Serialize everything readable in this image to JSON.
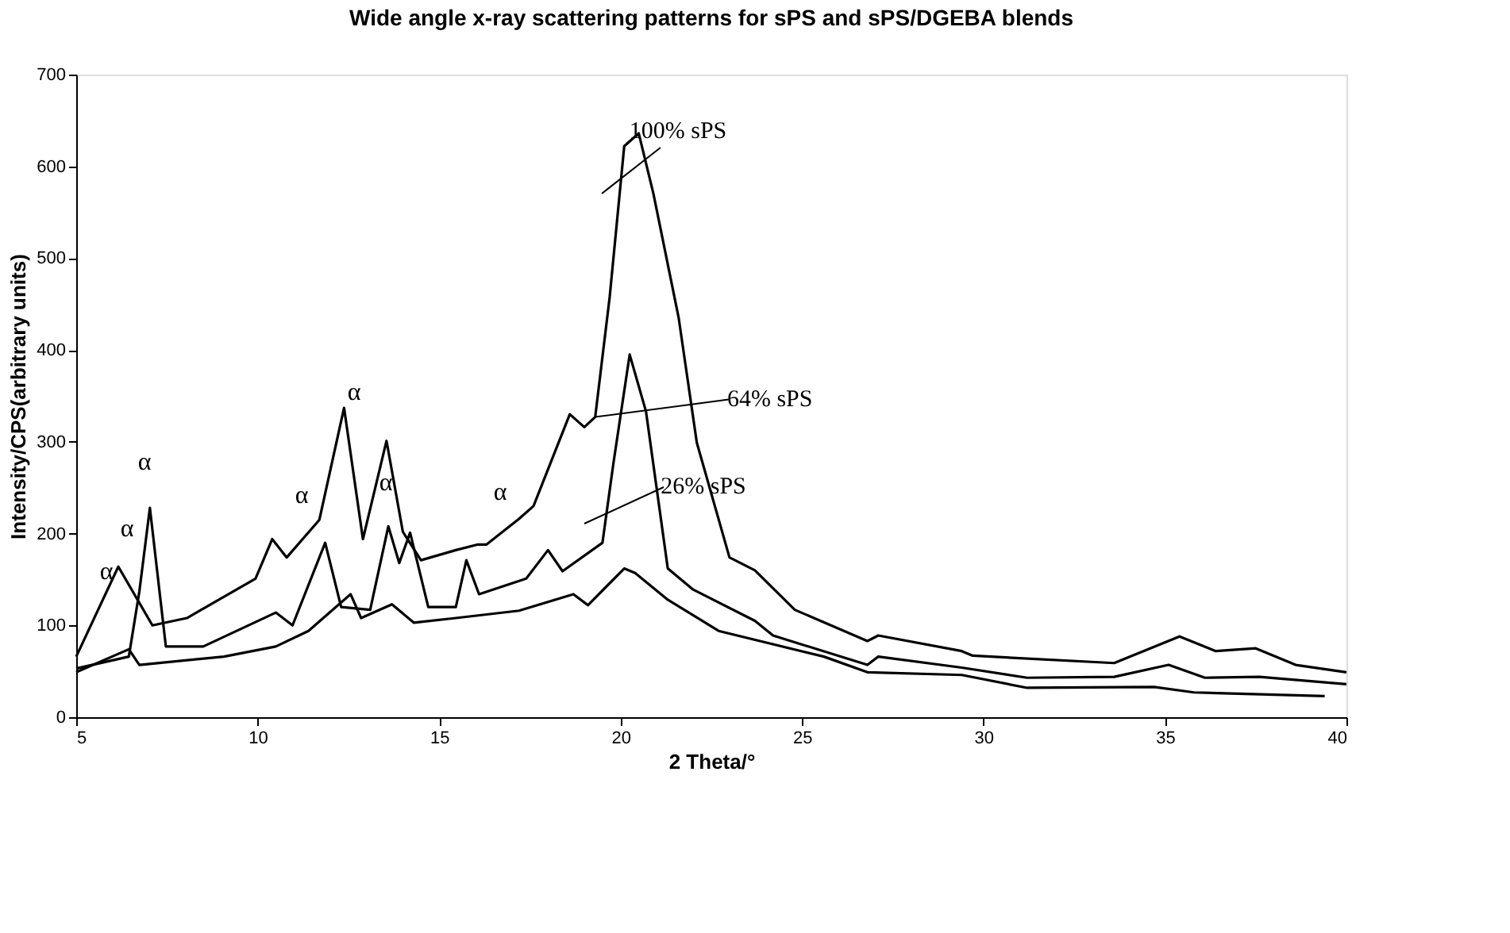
{
  "chart_data": {
    "type": "line",
    "title": "Wide angle x-ray scattering patterns for sPS and sPS/DGEBA blends",
    "xlabel": "2 Theta/°",
    "ylabel": "Intensity/CPS(arbitrary units)",
    "xlim": [
      5,
      40
    ],
    "xticks": [
      5,
      10,
      15,
      20,
      25,
      30,
      35,
      40
    ],
    "ylim": [
      0,
      700
    ],
    "yticks": [
      0,
      100,
      200,
      300,
      400,
      500,
      600,
      700
    ],
    "grid": false,
    "marker": "none",
    "line_style": "solid",
    "series": [
      {
        "color": "#000000",
        "x": [
          5,
          6.16,
          7.1,
          8.05,
          9.94,
          10.4,
          10.8,
          11.7,
          12.38,
          12.9,
          13.55,
          14.0,
          14.5,
          15.46,
          16.05,
          16.3,
          17.2,
          17.6,
          18.6,
          19.0,
          19.3,
          19.7,
          20.1,
          20.5,
          20.9,
          21.6,
          22.1,
          23.0,
          23.7,
          24.8,
          26.8,
          27.1,
          29.4,
          29.7,
          33.6,
          35.4,
          36.4,
          37.5,
          38.6,
          40
        ],
        "values": [
          66,
          164,
          100,
          108,
          151,
          194,
          174,
          215,
          337,
          194,
          301,
          202,
          171,
          182,
          188,
          188,
          216,
          230,
          330,
          316,
          327,
          458,
          622,
          636,
          571,
          435,
          299,
          174,
          160,
          117,
          83,
          89,
          72,
          67,
          59,
          88,
          72,
          75,
          57,
          49
        ]
      },
      {
        "color": "#000000",
        "x": [
          5,
          6.45,
          6.74,
          7.03,
          7.47,
          8.5,
          10.5,
          10.96,
          11.86,
          12.3,
          13.1,
          13.6,
          13.9,
          14.2,
          14.7,
          15.46,
          15.75,
          16.1,
          17.4,
          18.0,
          18.4,
          19.5,
          19.8,
          20.25,
          20.7,
          21.3,
          22.0,
          23.7,
          24.2,
          26.8,
          27.1,
          29.4,
          31.2,
          33.6,
          35.1,
          36.1,
          37.6,
          40
        ],
        "values": [
          53,
          66,
          137,
          228,
          77,
          77,
          114,
          100,
          190,
          120,
          117,
          208,
          168,
          201,
          120,
          120,
          171,
          134,
          151,
          182,
          159,
          190,
          276,
          395,
          333,
          162,
          139,
          105,
          89,
          57,
          66,
          54,
          43,
          44,
          57,
          43,
          44,
          36
        ]
      },
      {
        "color": "#000000",
        "x": [
          5,
          6.45,
          6.74,
          9.07,
          10.5,
          11.4,
          12.56,
          12.85,
          13.7,
          14.3,
          15.46,
          17.2,
          18.7,
          19.1,
          20.1,
          20.4,
          21.3,
          22.7,
          25.6,
          26.8,
          29.4,
          31.2,
          34.7,
          35.8,
          39.4
        ],
        "values": [
          49,
          74,
          57,
          66,
          77,
          94,
          134,
          108,
          123,
          103,
          108,
          116,
          134,
          122,
          162,
          157,
          128,
          94,
          66,
          49,
          46,
          32,
          33,
          27,
          23
        ]
      }
    ],
    "annotations": [
      "100% sPS",
      {
        "text": "64% sPS",
        "x": 19.3,
        "y": 327
      },
      "26% sPS",
      "α",
      "α",
      "α",
      "α",
      "α",
      "α",
      "α"
    ]
  }
}
